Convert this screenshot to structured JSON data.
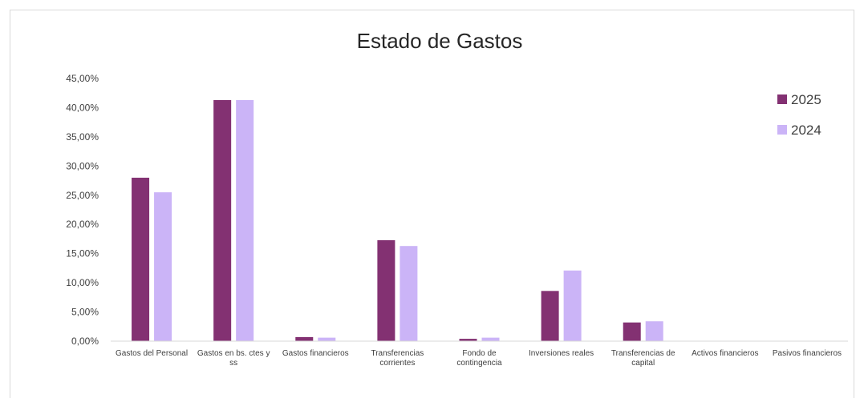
{
  "chart_data": {
    "type": "bar",
    "title": "Estado de Gastos",
    "xlabel": "",
    "ylabel": "",
    "ylim": [
      0,
      45
    ],
    "y_ticks": [
      "0,00%",
      "5,00%",
      "10,00%",
      "15,00%",
      "20,00%",
      "25,00%",
      "30,00%",
      "35,00%",
      "40,00%",
      "45,00%"
    ],
    "categories": [
      "Gastos del Personal",
      "Gastos en bs. ctes y ss",
      "Gastos financieros",
      "Transferencias corrientes",
      "Fondo de contingencia",
      "Inversiones reales",
      "Transferencias de capital",
      "Activos financieros",
      "Pasivos financieros"
    ],
    "series": [
      {
        "name": "2025",
        "color": "#833172",
        "values": [
          28.0,
          41.3,
          0.7,
          17.3,
          0.4,
          8.6,
          3.2,
          0.0,
          0.0
        ]
      },
      {
        "name": "2024",
        "color": "#cbb4f7",
        "values": [
          25.5,
          41.3,
          0.6,
          16.3,
          0.6,
          12.1,
          3.4,
          0.0,
          0.0
        ]
      }
    ],
    "legend_position": "right",
    "grid": false
  }
}
